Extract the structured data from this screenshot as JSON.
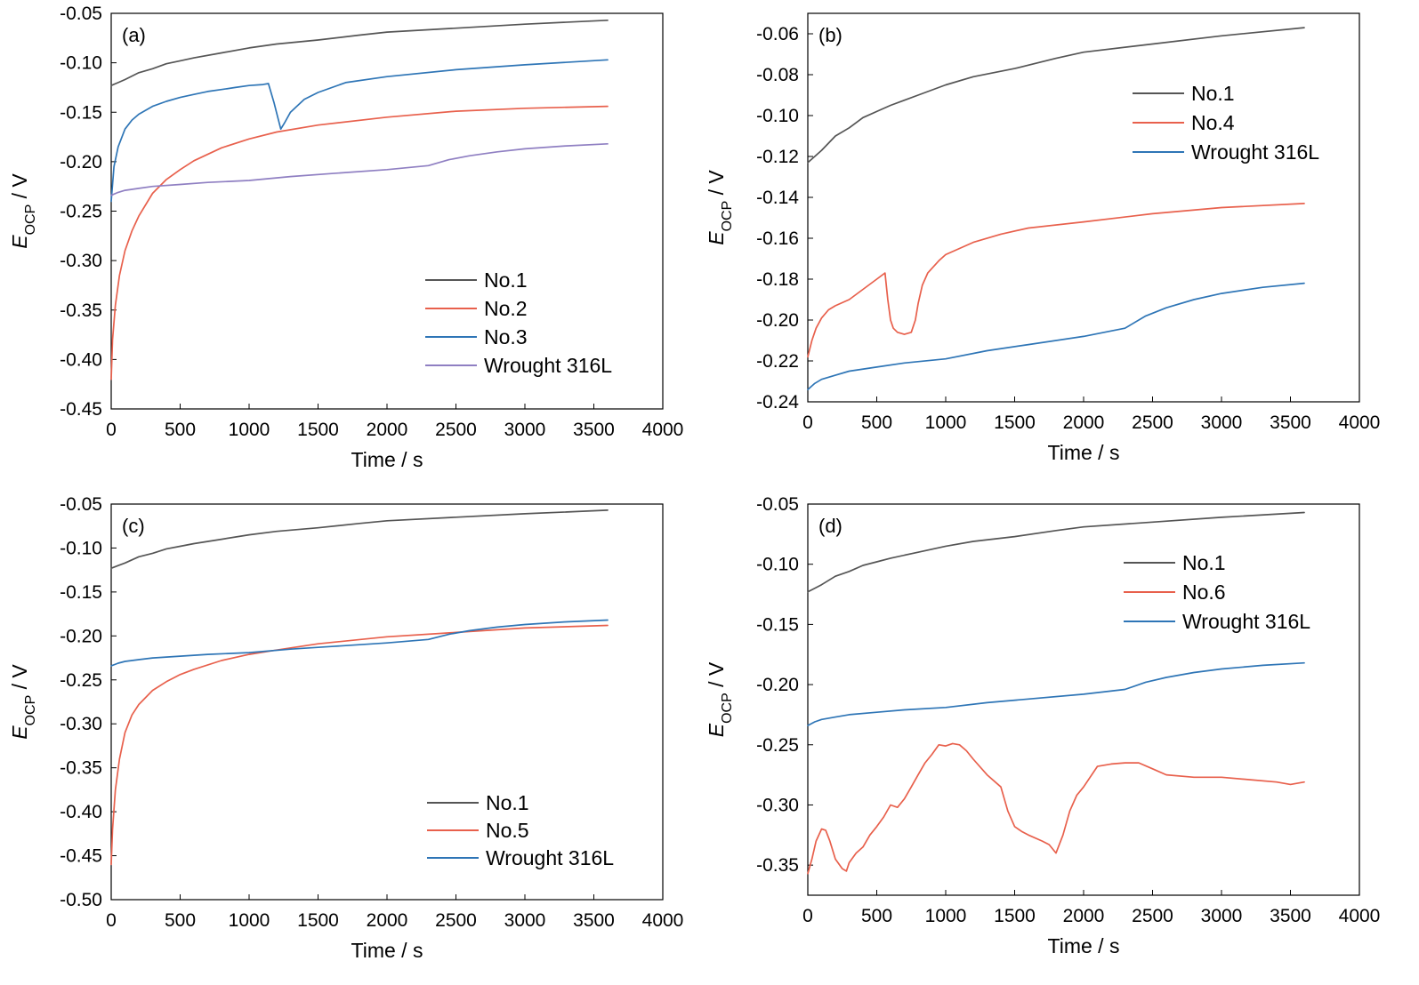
{
  "chart_data": [
    {
      "type": "line",
      "panel_label": "(a)",
      "xlabel": "Time / s",
      "ylabel": {
        "main": "E",
        "sub": "OCP",
        "unit": " / V"
      },
      "xlim": [
        0,
        4000
      ],
      "ylim": [
        -0.45,
        -0.05
      ],
      "xticks": [
        0,
        500,
        1000,
        1500,
        2000,
        2500,
        3000,
        3500,
        4000
      ],
      "yticks": [
        -0.45,
        -0.4,
        -0.35,
        -0.3,
        -0.25,
        -0.2,
        -0.15,
        -0.1,
        -0.05
      ],
      "ytick_labels": [
        "-0.45",
        "-0.40",
        "-0.35",
        "-0.30",
        "-0.25",
        "-0.20",
        "-0.15",
        "-0.10",
        "-0.05"
      ],
      "legend_position": "lower-right",
      "series": [
        {
          "name": "No.1",
          "color": "#555555",
          "x": [
            0,
            50,
            100,
            200,
            300,
            400,
            500,
            600,
            800,
            1000,
            1200,
            1500,
            1800,
            2000,
            2500,
            3000,
            3600
          ],
          "y": [
            -0.123,
            -0.12,
            -0.117,
            -0.11,
            -0.106,
            -0.101,
            -0.098,
            -0.095,
            -0.09,
            -0.085,
            -0.081,
            -0.077,
            -0.072,
            -0.069,
            -0.065,
            -0.061,
            -0.057
          ]
        },
        {
          "name": "No.2",
          "color": "#e8604c",
          "x": [
            0,
            10,
            30,
            60,
            100,
            150,
            200,
            300,
            400,
            500,
            600,
            800,
            1000,
            1200,
            1500,
            2000,
            2500,
            3000,
            3600
          ],
          "y": [
            -0.42,
            -0.38,
            -0.345,
            -0.315,
            -0.29,
            -0.27,
            -0.255,
            -0.232,
            -0.218,
            -0.208,
            -0.199,
            -0.186,
            -0.177,
            -0.17,
            -0.163,
            -0.155,
            -0.149,
            -0.146,
            -0.144
          ]
        },
        {
          "name": "No.3",
          "color": "#2e75b6",
          "x": [
            0,
            20,
            50,
            100,
            150,
            200,
            300,
            400,
            500,
            600,
            700,
            800,
            900,
            1000,
            1100,
            1140,
            1180,
            1230,
            1260,
            1300,
            1400,
            1500,
            1700,
            2000,
            2500,
            3000,
            3600
          ],
          "y": [
            -0.24,
            -0.205,
            -0.185,
            -0.167,
            -0.158,
            -0.152,
            -0.144,
            -0.139,
            -0.135,
            -0.132,
            -0.129,
            -0.127,
            -0.125,
            -0.123,
            -0.122,
            -0.121,
            -0.14,
            -0.167,
            -0.16,
            -0.15,
            -0.137,
            -0.13,
            -0.12,
            -0.114,
            -0.107,
            -0.102,
            -0.097
          ]
        },
        {
          "name": "Wrought 316L",
          "color": "#8f7fc2",
          "x": [
            0,
            50,
            100,
            200,
            300,
            500,
            700,
            1000,
            1300,
            1600,
            2000,
            2300,
            2450,
            2600,
            2800,
            3000,
            3300,
            3600
          ],
          "y": [
            -0.234,
            -0.231,
            -0.229,
            -0.227,
            -0.225,
            -0.223,
            -0.221,
            -0.219,
            -0.215,
            -0.212,
            -0.208,
            -0.204,
            -0.198,
            -0.194,
            -0.19,
            -0.187,
            -0.184,
            -0.182
          ]
        }
      ]
    },
    {
      "type": "line",
      "panel_label": "(b)",
      "xlabel": "Time / s",
      "ylabel": {
        "main": "E",
        "sub": "OCP",
        "unit": " / V"
      },
      "xlim": [
        0,
        4000
      ],
      "ylim": [
        -0.24,
        -0.05
      ],
      "xticks": [
        0,
        500,
        1000,
        1500,
        2000,
        2500,
        3000,
        3500,
        4000
      ],
      "yticks": [
        -0.24,
        -0.22,
        -0.2,
        -0.18,
        -0.16,
        -0.14,
        -0.12,
        -0.1,
        -0.08,
        -0.06
      ],
      "ytick_labels": [
        "-0.24",
        "-0.22",
        "-0.20",
        "-0.18",
        "-0.16",
        "-0.14",
        "-0.12",
        "-0.10",
        "-0.08",
        "-0.06"
      ],
      "legend_position": "upper-right",
      "series": [
        {
          "name": "No.1",
          "color": "#555555",
          "x": [
            0,
            50,
            100,
            200,
            300,
            400,
            500,
            600,
            800,
            1000,
            1200,
            1500,
            1800,
            2000,
            2500,
            3000,
            3600
          ],
          "y": [
            -0.123,
            -0.12,
            -0.117,
            -0.11,
            -0.106,
            -0.101,
            -0.098,
            -0.095,
            -0.09,
            -0.085,
            -0.081,
            -0.077,
            -0.072,
            -0.069,
            -0.065,
            -0.061,
            -0.057
          ]
        },
        {
          "name": "No.4",
          "color": "#e8604c",
          "x": [
            0,
            30,
            60,
            100,
            150,
            200,
            300,
            400,
            500,
            560,
            580,
            600,
            620,
            650,
            700,
            750,
            780,
            800,
            830,
            870,
            950,
            1000,
            1100,
            1200,
            1400,
            1600,
            2000,
            2500,
            3000,
            3600
          ],
          "y": [
            -0.218,
            -0.21,
            -0.204,
            -0.199,
            -0.195,
            -0.193,
            -0.19,
            -0.185,
            -0.18,
            -0.177,
            -0.19,
            -0.2,
            -0.204,
            -0.206,
            -0.207,
            -0.206,
            -0.2,
            -0.192,
            -0.183,
            -0.177,
            -0.171,
            -0.168,
            -0.165,
            -0.162,
            -0.158,
            -0.155,
            -0.152,
            -0.148,
            -0.145,
            -0.143
          ]
        },
        {
          "name": "Wrought 316L",
          "color": "#2e75b6",
          "x": [
            0,
            50,
            100,
            200,
            300,
            500,
            700,
            1000,
            1300,
            1600,
            2000,
            2300,
            2450,
            2600,
            2800,
            3000,
            3300,
            3600
          ],
          "y": [
            -0.234,
            -0.231,
            -0.229,
            -0.227,
            -0.225,
            -0.223,
            -0.221,
            -0.219,
            -0.215,
            -0.212,
            -0.208,
            -0.204,
            -0.198,
            -0.194,
            -0.19,
            -0.187,
            -0.184,
            -0.182
          ]
        }
      ]
    },
    {
      "type": "line",
      "panel_label": "(c)",
      "xlabel": "Time / s",
      "ylabel": {
        "main": "E",
        "sub": "OCP",
        "unit": " / V"
      },
      "xlim": [
        0,
        4000
      ],
      "ylim": [
        -0.5,
        -0.05
      ],
      "xticks": [
        0,
        500,
        1000,
        1500,
        2000,
        2500,
        3000,
        3500,
        4000
      ],
      "yticks": [
        -0.5,
        -0.45,
        -0.4,
        -0.35,
        -0.3,
        -0.25,
        -0.2,
        -0.15,
        -0.1,
        -0.05
      ],
      "ytick_labels": [
        "-0.50",
        "-0.45",
        "-0.40",
        "-0.35",
        "-0.30",
        "-0.25",
        "-0.20",
        "-0.15",
        "-0.10",
        "-0.05"
      ],
      "legend_position": "lower-right",
      "series": [
        {
          "name": "No.1",
          "color": "#555555",
          "x": [
            0,
            50,
            100,
            200,
            300,
            400,
            500,
            600,
            800,
            1000,
            1200,
            1500,
            1800,
            2000,
            2500,
            3000,
            3600
          ],
          "y": [
            -0.123,
            -0.12,
            -0.117,
            -0.11,
            -0.106,
            -0.101,
            -0.098,
            -0.095,
            -0.09,
            -0.085,
            -0.081,
            -0.077,
            -0.072,
            -0.069,
            -0.065,
            -0.061,
            -0.057
          ]
        },
        {
          "name": "No.5",
          "color": "#e8604c",
          "x": [
            0,
            10,
            30,
            60,
            100,
            150,
            200,
            300,
            400,
            500,
            600,
            800,
            1000,
            1200,
            1500,
            2000,
            2500,
            3000,
            3600
          ],
          "y": [
            -0.46,
            -0.42,
            -0.375,
            -0.34,
            -0.31,
            -0.29,
            -0.278,
            -0.262,
            -0.252,
            -0.244,
            -0.238,
            -0.228,
            -0.221,
            -0.216,
            -0.209,
            -0.201,
            -0.196,
            -0.191,
            -0.188
          ]
        },
        {
          "name": "Wrought 316L",
          "color": "#2e75b6",
          "x": [
            0,
            50,
            100,
            200,
            300,
            500,
            700,
            1000,
            1300,
            1600,
            2000,
            2300,
            2450,
            2600,
            2800,
            3000,
            3300,
            3600
          ],
          "y": [
            -0.234,
            -0.231,
            -0.229,
            -0.227,
            -0.225,
            -0.223,
            -0.221,
            -0.219,
            -0.215,
            -0.212,
            -0.208,
            -0.204,
            -0.198,
            -0.194,
            -0.19,
            -0.187,
            -0.184,
            -0.182
          ]
        }
      ]
    },
    {
      "type": "line",
      "panel_label": "(d)",
      "xlabel": "Time / s",
      "ylabel": {
        "main": "E",
        "sub": "OCP",
        "unit": " / V"
      },
      "xlim": [
        0,
        4000
      ],
      "ylim": [
        -0.375,
        -0.05
      ],
      "xticks": [
        0,
        500,
        1000,
        1500,
        2000,
        2500,
        3000,
        3500,
        4000
      ],
      "yticks": [
        -0.35,
        -0.3,
        -0.25,
        -0.2,
        -0.15,
        -0.1,
        -0.05
      ],
      "ytick_labels": [
        "-0.35",
        "-0.30",
        "-0.25",
        "-0.20",
        "-0.15",
        "-0.10",
        "-0.05"
      ],
      "legend_position": "upper-right",
      "series": [
        {
          "name": "No.1",
          "color": "#555555",
          "x": [
            0,
            50,
            100,
            200,
            300,
            400,
            500,
            600,
            800,
            1000,
            1200,
            1500,
            1800,
            2000,
            2500,
            3000,
            3600
          ],
          "y": [
            -0.123,
            -0.12,
            -0.117,
            -0.11,
            -0.106,
            -0.101,
            -0.098,
            -0.095,
            -0.09,
            -0.085,
            -0.081,
            -0.077,
            -0.072,
            -0.069,
            -0.065,
            -0.061,
            -0.057
          ]
        },
        {
          "name": "No.6",
          "color": "#e8604c",
          "x": [
            0,
            30,
            60,
            100,
            130,
            160,
            200,
            250,
            280,
            300,
            350,
            400,
            450,
            500,
            550,
            600,
            650,
            700,
            750,
            800,
            850,
            900,
            950,
            1000,
            1050,
            1100,
            1150,
            1200,
            1300,
            1400,
            1450,
            1500,
            1550,
            1600,
            1700,
            1750,
            1800,
            1850,
            1900,
            1950,
            2000,
            2100,
            2200,
            2300,
            2400,
            2500,
            2600,
            2800,
            3000,
            3200,
            3400,
            3500,
            3600
          ],
          "y": [
            -0.357,
            -0.345,
            -0.33,
            -0.32,
            -0.321,
            -0.33,
            -0.345,
            -0.353,
            -0.355,
            -0.348,
            -0.34,
            -0.335,
            -0.325,
            -0.318,
            -0.31,
            -0.3,
            -0.302,
            -0.295,
            -0.285,
            -0.275,
            -0.265,
            -0.258,
            -0.25,
            -0.251,
            -0.249,
            -0.25,
            -0.255,
            -0.262,
            -0.275,
            -0.285,
            -0.305,
            -0.318,
            -0.322,
            -0.325,
            -0.33,
            -0.333,
            -0.34,
            -0.325,
            -0.305,
            -0.292,
            -0.285,
            -0.268,
            -0.266,
            -0.265,
            -0.265,
            -0.27,
            -0.275,
            -0.277,
            -0.277,
            -0.279,
            -0.281,
            -0.283,
            -0.281
          ]
        },
        {
          "name": "Wrought 316L",
          "color": "#2e75b6",
          "x": [
            0,
            50,
            100,
            200,
            300,
            500,
            700,
            1000,
            1300,
            1600,
            2000,
            2300,
            2450,
            2600,
            2800,
            3000,
            3300,
            3600
          ],
          "y": [
            -0.234,
            -0.231,
            -0.229,
            -0.227,
            -0.225,
            -0.223,
            -0.221,
            -0.219,
            -0.215,
            -0.212,
            -0.208,
            -0.204,
            -0.198,
            -0.194,
            -0.19,
            -0.187,
            -0.184,
            -0.182
          ]
        }
      ]
    }
  ]
}
